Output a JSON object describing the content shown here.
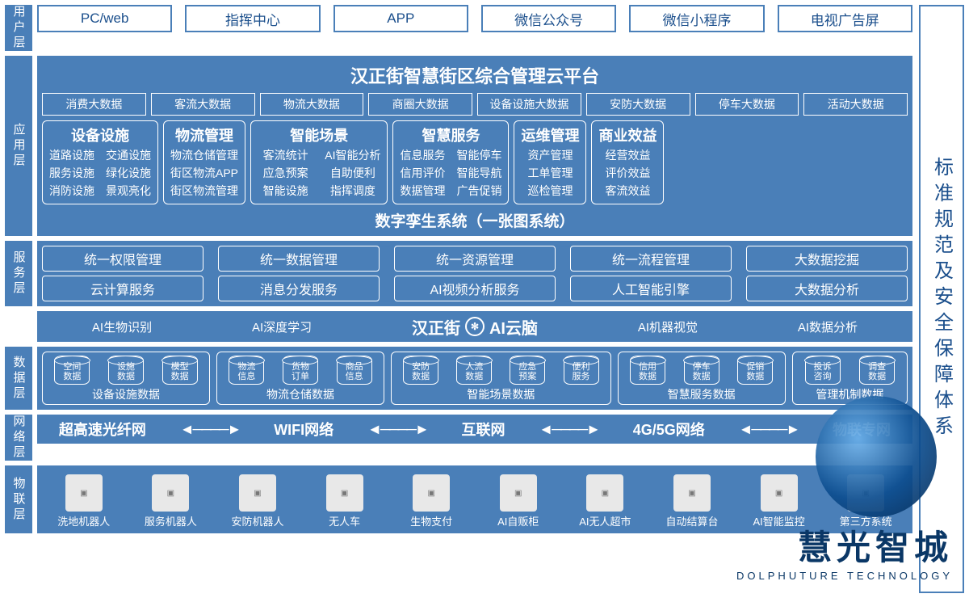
{
  "colors": {
    "primary": "#4a7fb8",
    "border": "#4a7fb8",
    "text_on_blue": "#ffffff",
    "text_blue": "#1b4f8c",
    "background": "#ffffff"
  },
  "right_panel": "标准规范及安全保障体系",
  "layers": {
    "user": {
      "label": "用户层",
      "items": [
        "PC/web",
        "指挥中心",
        "APP",
        "微信公众号",
        "微信小程序",
        "电视广告屏"
      ]
    },
    "app": {
      "label": "应用层",
      "platform_title": "汉正街智慧街区综合管理云平台",
      "data_row": [
        "消费大数据",
        "客流大数据",
        "物流大数据",
        "商圈大数据",
        "设备设施大数据",
        "安防大数据",
        "停车大数据",
        "活动大数据"
      ],
      "modules": [
        {
          "title": "设备设施",
          "cols": 2,
          "items": [
            "道路设施",
            "交通设施",
            "服务设施",
            "绿化设施",
            "消防设施",
            "景观亮化"
          ]
        },
        {
          "title": "物流管理",
          "cols": 1,
          "items": [
            "物流仓储管理",
            "街区物流APP",
            "街区物流管理"
          ]
        },
        {
          "title": "智能场景",
          "cols": 2,
          "items": [
            "客流统计",
            "AI智能分析",
            "应急预案",
            "自助便利",
            "智能设施",
            "指挥调度"
          ]
        },
        {
          "title": "智慧服务",
          "cols": 2,
          "items": [
            "信息服务",
            "智能停车",
            "信用评价",
            "智能导航",
            "数据管理",
            "广告促销"
          ]
        },
        {
          "title": "运维管理",
          "cols": 1,
          "items": [
            "资产管理",
            "工单管理",
            "巡检管理"
          ]
        },
        {
          "title": "商业效益",
          "cols": 1,
          "items": [
            "经营效益",
            "评价效益",
            "客流效益"
          ]
        }
      ],
      "twin_title": "数字孪生系统（一张图系统）"
    },
    "service": {
      "label": "服务层",
      "row1": [
        "统一权限管理",
        "统一数据管理",
        "统一资源管理",
        "统一流程管理",
        "大数据挖掘"
      ],
      "row2": [
        "云计算服务",
        "消息分发服务",
        "AI视频分析服务",
        "人工智能引擎",
        "大数据分析"
      ]
    },
    "brain": {
      "left": [
        "AI生物识别",
        "AI深度学习"
      ],
      "center_l": "汉正街",
      "center_r": "AI云脑",
      "right": [
        "AI机器视觉",
        "AI数据分析"
      ]
    },
    "data": {
      "label": "数据层",
      "groups": [
        {
          "title": "设备设施数据",
          "items": [
            "空间数据",
            "设施数据",
            "模型数据"
          ]
        },
        {
          "title": "物流仓储数据",
          "items": [
            "物流信息",
            "货物订单",
            "商品信息"
          ]
        },
        {
          "title": "智能场景数据",
          "items": [
            "安防数据",
            "人流数据",
            "应急预案",
            "便利服务"
          ]
        },
        {
          "title": "智慧服务数据",
          "items": [
            "信用数据",
            "停车数据",
            "促销数据"
          ]
        },
        {
          "title": "管理机制数据",
          "items": [
            "投诉咨询",
            "调查数据"
          ]
        }
      ]
    },
    "network": {
      "label": "网络层",
      "items": [
        "超高速光纤网",
        "WIFI网络",
        "互联网",
        "4G/5G网络",
        "物联专网"
      ]
    },
    "iot": {
      "label": "物联层",
      "items": [
        "洗地机器人",
        "服务机器人",
        "安防机器人",
        "无人车",
        "生物支付",
        "AI自贩柜",
        "AI无人超市",
        "自动结算台",
        "AI智能监控",
        "第三方系统"
      ]
    }
  },
  "watermark": {
    "text": "慧光智城",
    "sub": "DOLPHUTURE TECHNOLOGY"
  }
}
